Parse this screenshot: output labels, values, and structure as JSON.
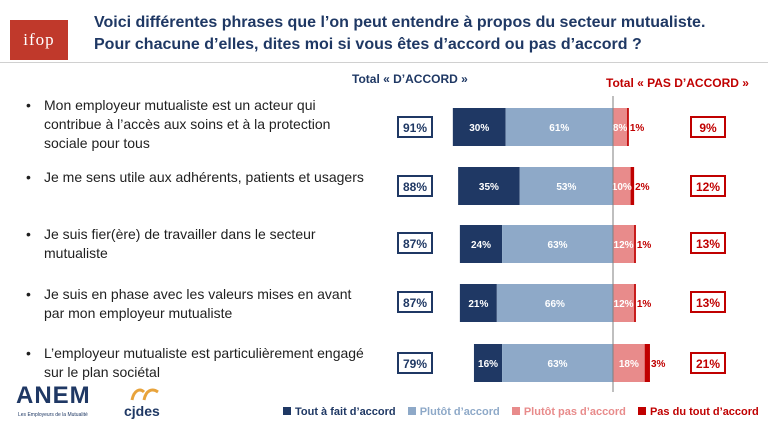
{
  "title": {
    "line1": "Voici différentes phrases que l’on peut entendre à propos du secteur mutualiste.",
    "line2": "Pour chacune d’elles, dites moi si vous êtes d’accord ou pas d’accord ?"
  },
  "logos": {
    "ifop": "ifop",
    "anem": "ANEM",
    "anem_sub": "Les Employeurs de la Mutualité",
    "cjdes": "cjdes"
  },
  "colors": {
    "tout_a_fait": "#1f3864",
    "plutot_accord": "#8ea9c8",
    "plutot_pas": "#e88b8b",
    "pas_du_tout": "#c00000"
  },
  "chart_data": {
    "type": "bar",
    "orientation": "horizontal-stacked-diverging",
    "header_accord": "Total « D’ACCORD »",
    "header_pas_accord": "Total  « PAS D’ACCORD »",
    "categories": [
      "Mon employeur mutualiste est un acteur qui contribue à l’accès aux soins et à la protection sociale pour tous",
      "Je me sens utile aux adhérents, patients et usagers",
      "Je suis fier(ère) de travailler dans le secteur mutualiste",
      "Je suis en phase avec les valeurs mises en avant par mon employeur mutualiste",
      "L’employeur mutualiste est particulièrement engagé sur le plan sociétal"
    ],
    "series": [
      {
        "name": "Tout à fait d’accord",
        "values": [
          30,
          35,
          24,
          21,
          16
        ],
        "labels": [
          "30%",
          "35%",
          "24%",
          "21%",
          "16%"
        ]
      },
      {
        "name": "Plutôt d’accord",
        "values": [
          61,
          53,
          63,
          66,
          63
        ],
        "labels": [
          "61%",
          "53%",
          "63%",
          "66%",
          "63%"
        ]
      },
      {
        "name": "Plutôt pas d’accord",
        "values": [
          8,
          10,
          12,
          12,
          18
        ],
        "labels": [
          "8%",
          "10%",
          "12%",
          "12%",
          "18%"
        ]
      },
      {
        "name": "Pas du tout d’accord",
        "values": [
          1,
          2,
          1,
          1,
          3
        ],
        "labels": [
          "1%",
          "2%",
          "1%",
          "1%",
          "3%"
        ]
      }
    ],
    "total_accord": [
      "91%",
      "88%",
      "87%",
      "87%",
      "79%"
    ],
    "total_pas_accord": [
      "9%",
      "12%",
      "13%",
      "13%",
      "21%"
    ],
    "unit": "%",
    "legend_position": "bottom"
  }
}
